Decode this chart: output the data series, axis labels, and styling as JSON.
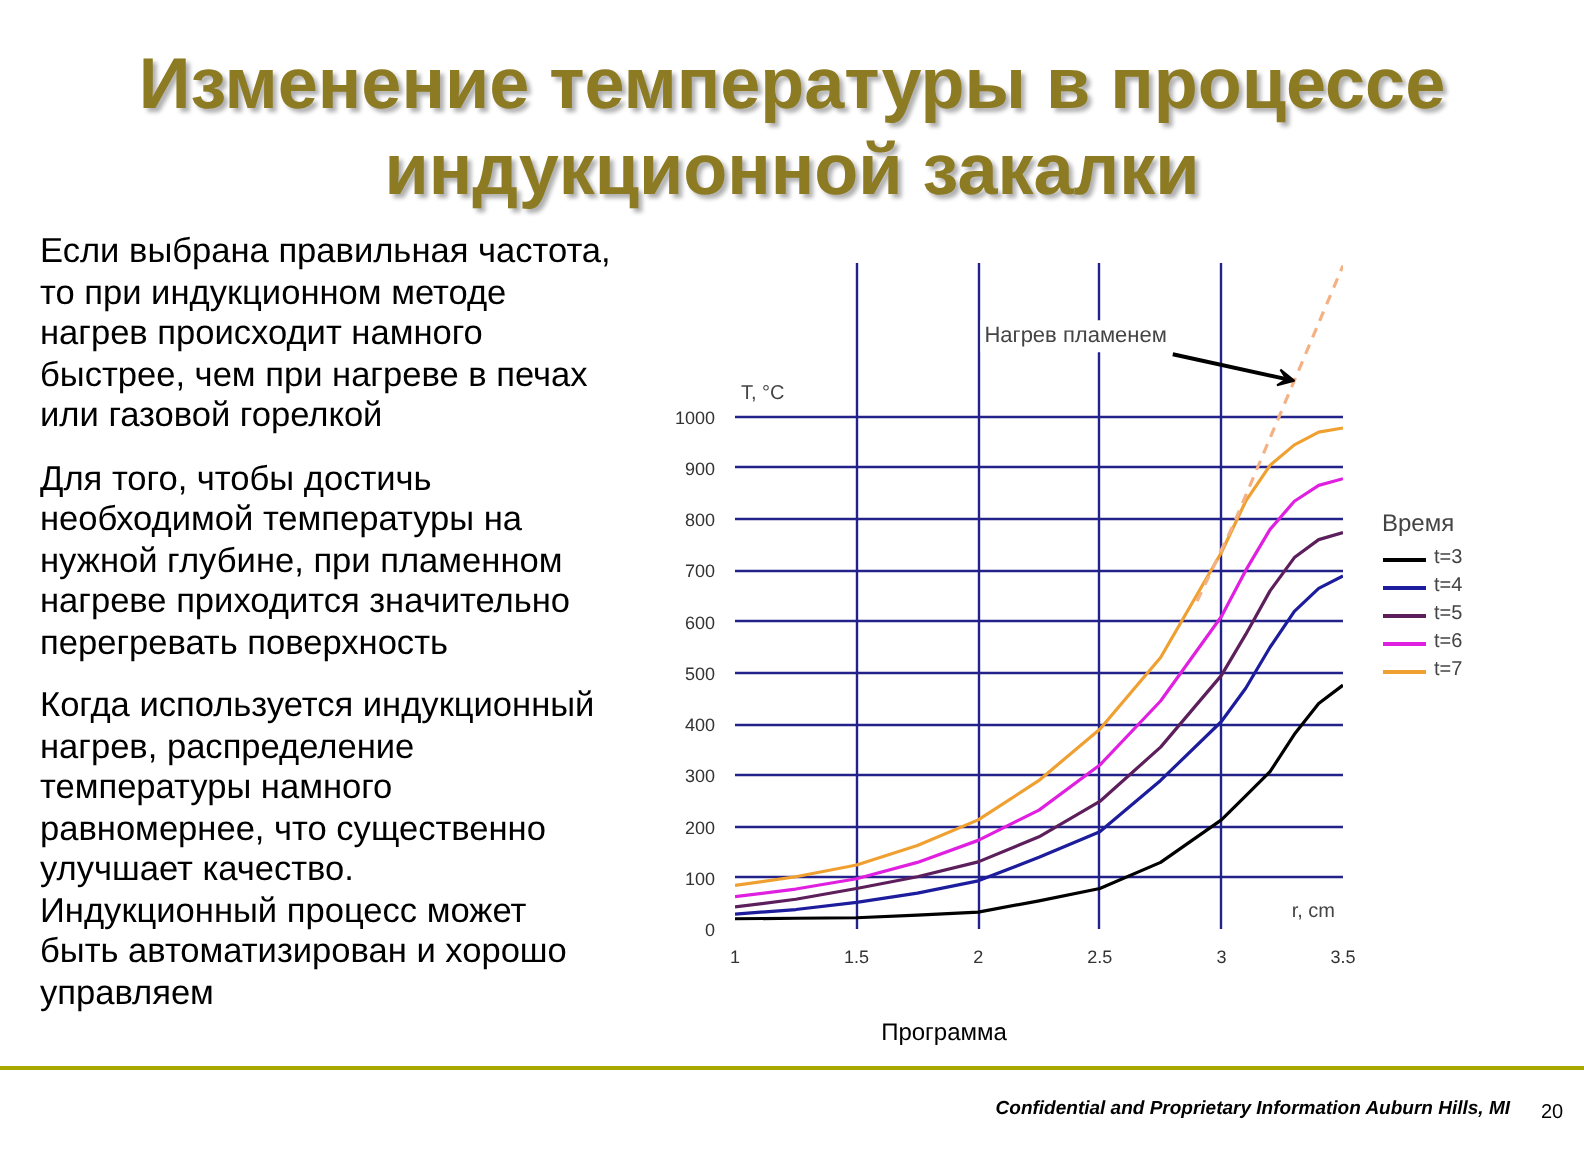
{
  "chart_data": {
    "type": "line",
    "title": "Изменение температуры в процессе индукционной закалки",
    "xlabel": "r, cm",
    "ylabel": "T, °C",
    "legend_title": "Время",
    "x": [
      1,
      1.25,
      1.5,
      1.75,
      2,
      2.25,
      2.5,
      2.75,
      3,
      3.1,
      3.2,
      3.3,
      3.4,
      3.5
    ],
    "series": [
      {
        "name": "t=3",
        "color": "#000000",
        "values": [
          20,
          21,
          22,
          27,
          33,
          55,
          79,
          130,
          213,
          260,
          307,
          380,
          440,
          476
        ]
      },
      {
        "name": "t=4",
        "color": "#1c1c9c",
        "values": [
          29,
          38,
          52,
          70,
          94,
          140,
          190,
          290,
          405,
          470,
          550,
          620,
          665,
          689
        ]
      },
      {
        "name": "t=5",
        "color": "#5c1f5c",
        "values": [
          43,
          58,
          79,
          102,
          131,
          180,
          249,
          355,
          495,
          575,
          660,
          725,
          760,
          774
        ]
      },
      {
        "name": "t=6",
        "color": "#e020e0",
        "values": [
          63,
          78,
          98,
          130,
          173,
          232,
          320,
          445,
          610,
          700,
          780,
          835,
          866,
          879
        ]
      },
      {
        "name": "t=7",
        "color": "#f0a030",
        "values": [
          85,
          102,
          125,
          163,
          213,
          290,
          390,
          530,
          735,
          835,
          905,
          945,
          970,
          978
        ]
      },
      {
        "color": "#f4b183",
        "line_style": "dashed",
        "x": [
          2.9,
          3.05,
          3.5
        ],
        "values": [
          640,
          790,
          1295
        ]
      }
    ],
    "xlim": [
      1,
      3.5
    ],
    "ylim": [
      0,
      1300
    ],
    "xticks": [
      1,
      1.5,
      2,
      2.5,
      3,
      3.5
    ],
    "yticks": [
      0,
      100,
      200,
      300,
      400,
      500,
      600,
      700,
      800,
      900,
      1000
    ],
    "grid": true,
    "legend": "right",
    "line_style": "solid",
    "annotations": [
      "Если выбрана правильная частота, то при индукционном методе нагрев происходит намного быстрее, чем при нагреве в печах или газовой горелкой",
      "Для того, чтобы достичь необходимой температуры на нужной глубине, при пламенном нагреве  приходится значительно перегревать поверхность",
      "Когда используется индукционный нагрев, распределение температуры намного равномернее, что существенно улучшает качество.\nИндукционный процесс может быть автоматизирован и хорошо управляем",
      {
        "text": "Нагрев пламенем",
        "x": 3.3,
        "y": 1070
      },
      "Программа",
      "Confidential and Proprietary Information Auburn Hills, MI",
      "20"
    ]
  }
}
